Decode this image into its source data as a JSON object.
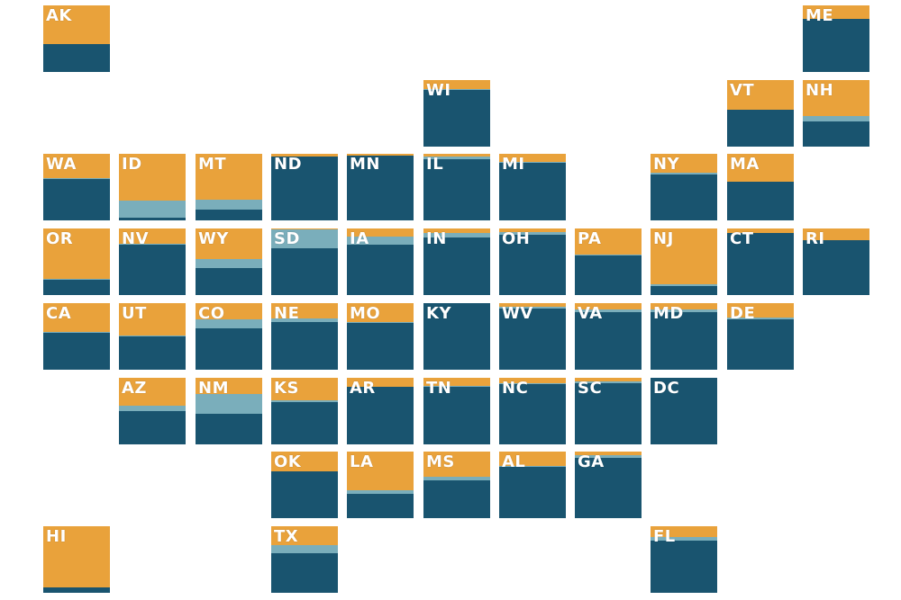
{
  "colors": {
    "bottom": "#19546f",
    "middle": "#7aaebb",
    "top": "#e9a23b"
  },
  "chart_data": {
    "type": "tile-grid-map",
    "segment_order": [
      "bottom",
      "middle",
      "top"
    ],
    "tiles": [
      {
        "state": "AK",
        "row": 0,
        "col": 0,
        "values": [
          0.42,
          0.0,
          0.58
        ]
      },
      {
        "state": "ME",
        "row": 0,
        "col": 10,
        "values": [
          0.8,
          0.0,
          0.2
        ]
      },
      {
        "state": "WI",
        "row": 1,
        "col": 5,
        "values": [
          0.86,
          0.01,
          0.13
        ]
      },
      {
        "state": "VT",
        "row": 1,
        "col": 9,
        "values": [
          0.56,
          0.0,
          0.44
        ]
      },
      {
        "state": "NH",
        "row": 1,
        "col": 10,
        "values": [
          0.38,
          0.08,
          0.54
        ]
      },
      {
        "state": "WA",
        "row": 2,
        "col": 0,
        "values": [
          0.63,
          0.01,
          0.36
        ]
      },
      {
        "state": "ID",
        "row": 2,
        "col": 1,
        "values": [
          0.04,
          0.26,
          0.7
        ]
      },
      {
        "state": "MT",
        "row": 2,
        "col": 2,
        "values": [
          0.16,
          0.15,
          0.69
        ]
      },
      {
        "state": "ND",
        "row": 2,
        "col": 3,
        "values": [
          0.96,
          0.0,
          0.04
        ]
      },
      {
        "state": "MN",
        "row": 2,
        "col": 4,
        "values": [
          0.97,
          0.0,
          0.03
        ]
      },
      {
        "state": "IL",
        "row": 2,
        "col": 5,
        "values": [
          0.92,
          0.04,
          0.04
        ]
      },
      {
        "state": "MI",
        "row": 2,
        "col": 6,
        "values": [
          0.86,
          0.02,
          0.12
        ]
      },
      {
        "state": "NY",
        "row": 2,
        "col": 8,
        "values": [
          0.69,
          0.02,
          0.29
        ]
      },
      {
        "state": "MA",
        "row": 2,
        "col": 9,
        "values": [
          0.58,
          0.0,
          0.42
        ]
      },
      {
        "state": "OR",
        "row": 3,
        "col": 0,
        "values": [
          0.23,
          0.02,
          0.75
        ]
      },
      {
        "state": "NV",
        "row": 3,
        "col": 1,
        "values": [
          0.76,
          0.01,
          0.23
        ]
      },
      {
        "state": "WY",
        "row": 3,
        "col": 2,
        "values": [
          0.4,
          0.14,
          0.46
        ]
      },
      {
        "state": "SD",
        "row": 3,
        "col": 3,
        "values": [
          0.7,
          0.28,
          0.02
        ]
      },
      {
        "state": "IA",
        "row": 3,
        "col": 4,
        "values": [
          0.76,
          0.12,
          0.12
        ]
      },
      {
        "state": "IN",
        "row": 3,
        "col": 5,
        "values": [
          0.86,
          0.07,
          0.07
        ]
      },
      {
        "state": "OH",
        "row": 3,
        "col": 6,
        "values": [
          0.91,
          0.04,
          0.05
        ]
      },
      {
        "state": "PA",
        "row": 3,
        "col": 7,
        "values": [
          0.6,
          0.01,
          0.39
        ]
      },
      {
        "state": "NJ",
        "row": 3,
        "col": 8,
        "values": [
          0.13,
          0.03,
          0.84
        ]
      },
      {
        "state": "CT",
        "row": 3,
        "col": 9,
        "values": [
          0.93,
          0.0,
          0.07
        ]
      },
      {
        "state": "RI",
        "row": 3,
        "col": 10,
        "values": [
          0.82,
          0.0,
          0.18
        ]
      },
      {
        "state": "CA",
        "row": 4,
        "col": 0,
        "values": [
          0.55,
          0.02,
          0.43
        ]
      },
      {
        "state": "UT",
        "row": 4,
        "col": 1,
        "values": [
          0.5,
          0.02,
          0.48
        ]
      },
      {
        "state": "CO",
        "row": 4,
        "col": 2,
        "values": [
          0.62,
          0.14,
          0.24
        ]
      },
      {
        "state": "NE",
        "row": 4,
        "col": 3,
        "values": [
          0.72,
          0.05,
          0.23
        ]
      },
      {
        "state": "MO",
        "row": 4,
        "col": 4,
        "values": [
          0.7,
          0.02,
          0.28
        ]
      },
      {
        "state": "KY",
        "row": 4,
        "col": 5,
        "values": [
          1.0,
          0.0,
          0.0
        ]
      },
      {
        "state": "WV",
        "row": 4,
        "col": 6,
        "values": [
          0.92,
          0.02,
          0.06
        ]
      },
      {
        "state": "VA",
        "row": 4,
        "col": 7,
        "values": [
          0.86,
          0.04,
          0.1
        ]
      },
      {
        "state": "MD",
        "row": 4,
        "col": 8,
        "values": [
          0.86,
          0.05,
          0.09
        ]
      },
      {
        "state": "DE",
        "row": 4,
        "col": 9,
        "values": [
          0.76,
          0.02,
          0.22
        ]
      },
      {
        "state": "AZ",
        "row": 5,
        "col": 1,
        "values": [
          0.5,
          0.08,
          0.42
        ]
      },
      {
        "state": "NM",
        "row": 5,
        "col": 2,
        "values": [
          0.46,
          0.3,
          0.24
        ]
      },
      {
        "state": "KS",
        "row": 5,
        "col": 3,
        "values": [
          0.64,
          0.02,
          0.34
        ]
      },
      {
        "state": "AR",
        "row": 5,
        "col": 4,
        "values": [
          0.86,
          0.0,
          0.14
        ]
      },
      {
        "state": "TN",
        "row": 5,
        "col": 5,
        "values": [
          0.86,
          0.02,
          0.12
        ]
      },
      {
        "state": "NC",
        "row": 5,
        "col": 6,
        "values": [
          0.9,
          0.02,
          0.08
        ]
      },
      {
        "state": "SC",
        "row": 5,
        "col": 7,
        "values": [
          0.92,
          0.02,
          0.06
        ]
      },
      {
        "state": "DC",
        "row": 5,
        "col": 8,
        "values": [
          1.0,
          0.0,
          0.0
        ]
      },
      {
        "state": "OK",
        "row": 6,
        "col": 3,
        "values": [
          0.7,
          0.0,
          0.3
        ]
      },
      {
        "state": "LA",
        "row": 6,
        "col": 4,
        "values": [
          0.37,
          0.05,
          0.58
        ]
      },
      {
        "state": "MS",
        "row": 6,
        "col": 5,
        "values": [
          0.57,
          0.05,
          0.38
        ]
      },
      {
        "state": "AL",
        "row": 6,
        "col": 6,
        "values": [
          0.77,
          0.02,
          0.21
        ]
      },
      {
        "state": "GA",
        "row": 6,
        "col": 7,
        "values": [
          0.91,
          0.03,
          0.06
        ]
      },
      {
        "state": "HI",
        "row": 7,
        "col": 0,
        "values": [
          0.08,
          0.0,
          0.92
        ]
      },
      {
        "state": "TX",
        "row": 7,
        "col": 3,
        "values": [
          0.6,
          0.11,
          0.29
        ]
      },
      {
        "state": "FL",
        "row": 7,
        "col": 8,
        "values": [
          0.78,
          0.06,
          0.16
        ]
      }
    ]
  }
}
